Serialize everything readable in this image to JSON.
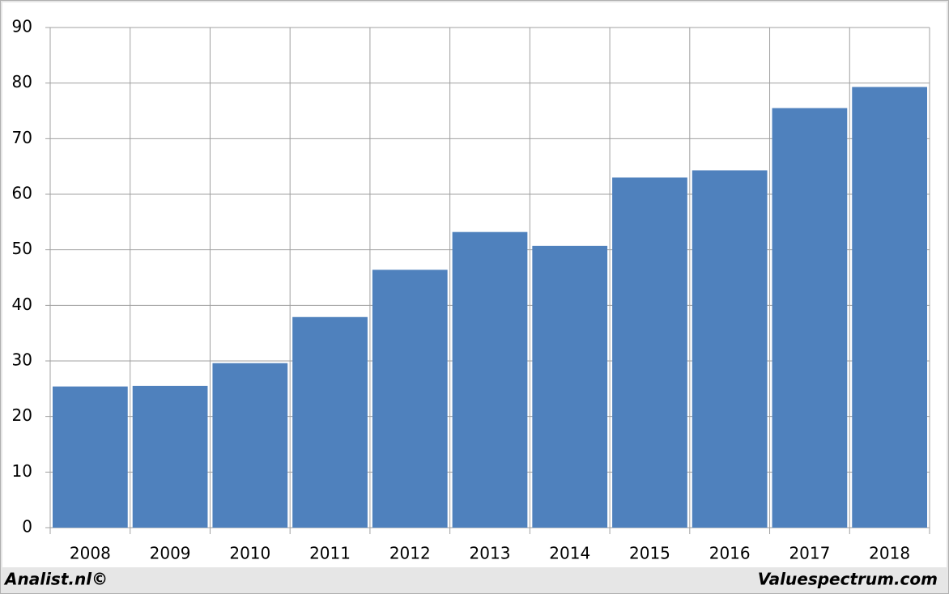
{
  "chart_data": {
    "type": "bar",
    "categories": [
      "2008",
      "2009",
      "2010",
      "2011",
      "2012",
      "2013",
      "2014",
      "2015",
      "2016",
      "2017",
      "2018"
    ],
    "values": [
      25.4,
      25.5,
      29.6,
      37.9,
      46.4,
      53.2,
      50.7,
      63.0,
      64.3,
      75.5,
      79.3
    ],
    "color": "#4f81bd",
    "ylim": [
      0,
      90
    ],
    "yticks": [
      0,
      10,
      20,
      30,
      40,
      50,
      60,
      70,
      80,
      90
    ],
    "grid": true,
    "source_left": "Analist.nl©",
    "source_right": "Valuespectrum.com"
  }
}
